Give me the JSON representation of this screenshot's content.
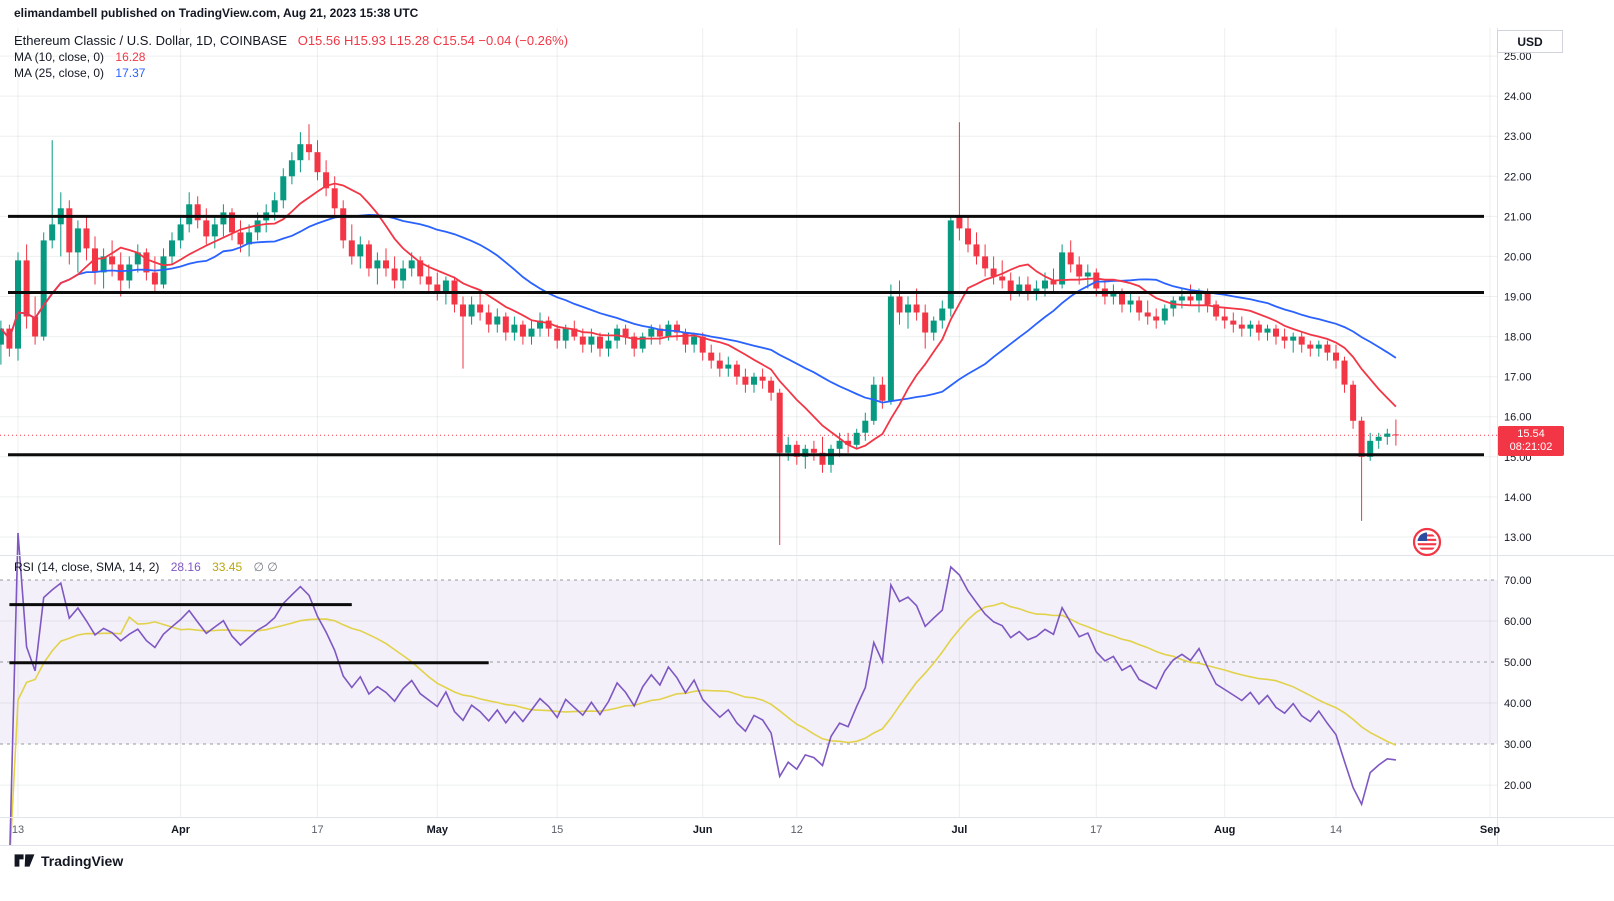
{
  "publish": {
    "text": "elimandambell published on TradingView.com, Aug 21, 2023 15:38 UTC"
  },
  "symbol_header": {
    "title": "Ethereum Classic / U.S. Dollar, 1D, COINBASE",
    "ohlc_text": "O15.56 H15.93 L15.28 C15.54 −0.04 (−0.26%)",
    "ma10": {
      "label": "MA (10, close, 0)",
      "value": "16.28"
    },
    "ma25": {
      "label": "MA (25, close, 0)",
      "value": "17.37"
    }
  },
  "rsi_header": {
    "label": "RSI (14, close, SMA, 14, 2)",
    "rsi_value": "28.16",
    "sma_value": "33.45",
    "extra": "∅ ∅"
  },
  "axes": {
    "currency_label": "USD",
    "price_tag": {
      "price": "15.54",
      "countdown": "08:21:02"
    }
  },
  "footer": {
    "brand": "TradingView"
  },
  "colors": {
    "up": "#089981",
    "down": "#F23645",
    "ma10": "#F23645",
    "ma25": "#2962FF",
    "rsi": "#7E57C2",
    "rsi_ma": "#E2D24B",
    "band_fill": "rgba(126,87,194,0.09)",
    "band_line": "#9598A1",
    "level": "#0B0B0B",
    "grid": "rgba(42,46,57,0.08)",
    "sep": "#E0E3EB",
    "axis_text": "#131722",
    "time_text": "#5A5F6A"
  },
  "chart_data": {
    "type": "candlestick",
    "title": "Ethereum Classic / U.S. Dollar, 1D, COINBASE",
    "exchange": "COINBASE",
    "interval": "1D",
    "start_date": "2023-03-11",
    "end_date": "2023-08-21",
    "price_ylim": [
      12.6,
      25.7
    ],
    "price_ticks": [
      25,
      24,
      23,
      22,
      21,
      20,
      19,
      18,
      17,
      16,
      15,
      14,
      13
    ],
    "rsi_ticks": [
      70,
      60,
      50,
      40,
      30,
      20
    ],
    "time_ticks": [
      {
        "i": 2,
        "label": "13",
        "major": false
      },
      {
        "i": 21,
        "label": "Apr",
        "major": true
      },
      {
        "i": 37,
        "label": "17",
        "major": false
      },
      {
        "i": 51,
        "label": "May",
        "major": true
      },
      {
        "i": 65,
        "label": "15",
        "major": false
      },
      {
        "i": 82,
        "label": "Jun",
        "major": true
      },
      {
        "i": 93,
        "label": "12",
        "major": false
      },
      {
        "i": 112,
        "label": "Jul",
        "major": true
      },
      {
        "i": 128,
        "label": "17",
        "major": false
      },
      {
        "i": 143,
        "label": "Aug",
        "major": true
      },
      {
        "i": 156,
        "label": "14",
        "major": false
      },
      {
        "i": 174,
        "label": "Sep",
        "major": true
      }
    ],
    "levels": [
      21.0,
      19.1,
      15.05
    ],
    "price_line": 15.54,
    "indicators": {
      "ma10": {
        "period": 10,
        "value": 16.28
      },
      "ma25": {
        "period": 25,
        "value": 17.37
      }
    },
    "rsi": {
      "period": 14,
      "smoothing": 14,
      "value": 28.16,
      "sma_value": 33.45,
      "ylim": [
        12.7,
        75.6
      ],
      "band": [
        30,
        70
      ],
      "mid": 50,
      "trendlines": [
        {
          "i1": 1,
          "i2": 41,
          "v": 64
        },
        {
          "i1": 1,
          "i2": 57,
          "v": 49.8
        }
      ]
    },
    "ohlc": [
      [
        17.8,
        18.4,
        17.3,
        18.2
      ],
      [
        18.2,
        18.3,
        17.5,
        17.7
      ],
      [
        17.7,
        20.1,
        17.4,
        19.9
      ],
      [
        19.9,
        20.3,
        18.2,
        18.5
      ],
      [
        18.5,
        19.0,
        17.8,
        18.0
      ],
      [
        18.0,
        20.6,
        17.9,
        20.4
      ],
      [
        20.4,
        22.9,
        20.2,
        20.8
      ],
      [
        20.8,
        21.6,
        20.0,
        21.2
      ],
      [
        21.2,
        21.4,
        19.8,
        20.1
      ],
      [
        20.1,
        20.9,
        19.6,
        20.7
      ],
      [
        20.7,
        21.0,
        19.9,
        20.2
      ],
      [
        20.2,
        20.5,
        19.3,
        19.6
      ],
      [
        19.6,
        20.2,
        19.2,
        20.0
      ],
      [
        20.0,
        20.4,
        19.5,
        19.8
      ],
      [
        19.8,
        20.1,
        19.0,
        19.4
      ],
      [
        19.4,
        20.0,
        19.2,
        19.8
      ],
      [
        19.8,
        20.3,
        19.6,
        20.1
      ],
      [
        20.1,
        20.2,
        19.4,
        19.6
      ],
      [
        19.6,
        20.0,
        19.1,
        19.3
      ],
      [
        19.3,
        20.2,
        19.2,
        20.0
      ],
      [
        20.0,
        20.6,
        19.8,
        20.4
      ],
      [
        20.4,
        21.0,
        20.2,
        20.8
      ],
      [
        20.8,
        21.6,
        20.6,
        21.3
      ],
      [
        21.3,
        21.5,
        20.7,
        20.9
      ],
      [
        20.9,
        21.2,
        20.3,
        20.5
      ],
      [
        20.5,
        21.0,
        20.2,
        20.8
      ],
      [
        20.8,
        21.3,
        20.5,
        21.1
      ],
      [
        21.1,
        21.2,
        20.4,
        20.6
      ],
      [
        20.6,
        20.9,
        20.1,
        20.3
      ],
      [
        20.3,
        20.8,
        20.0,
        20.6
      ],
      [
        20.6,
        21.1,
        20.4,
        20.9
      ],
      [
        20.9,
        21.3,
        20.6,
        21.1
      ],
      [
        21.1,
        21.6,
        20.9,
        21.4
      ],
      [
        21.4,
        22.2,
        21.2,
        22.0
      ],
      [
        22.0,
        22.6,
        21.8,
        22.4
      ],
      [
        22.4,
        23.1,
        22.1,
        22.8
      ],
      [
        22.8,
        23.3,
        22.4,
        22.6
      ],
      [
        22.6,
        22.9,
        21.9,
        22.1
      ],
      [
        22.1,
        22.4,
        21.5,
        21.7
      ],
      [
        21.7,
        22.0,
        21.0,
        21.2
      ],
      [
        21.2,
        21.4,
        20.2,
        20.4
      ],
      [
        20.4,
        20.8,
        19.8,
        20.0
      ],
      [
        20.0,
        20.5,
        19.7,
        20.3
      ],
      [
        20.3,
        20.4,
        19.5,
        19.7
      ],
      [
        19.7,
        20.1,
        19.3,
        19.9
      ],
      [
        19.9,
        20.2,
        19.5,
        19.7
      ],
      [
        19.7,
        20.0,
        19.2,
        19.4
      ],
      [
        19.4,
        19.9,
        19.2,
        19.7
      ],
      [
        19.7,
        20.1,
        19.5,
        19.9
      ],
      [
        19.9,
        20.0,
        19.3,
        19.5
      ],
      [
        19.5,
        19.8,
        19.1,
        19.3
      ],
      [
        19.3,
        19.6,
        18.9,
        19.1
      ],
      [
        19.1,
        19.5,
        18.8,
        19.4
      ],
      [
        19.4,
        19.5,
        18.6,
        18.8
      ],
      [
        18.8,
        19.0,
        17.2,
        18.5
      ],
      [
        18.5,
        19.0,
        18.3,
        18.8
      ],
      [
        18.8,
        19.1,
        18.4,
        18.6
      ],
      [
        18.6,
        18.8,
        18.1,
        18.3
      ],
      [
        18.3,
        18.7,
        18.1,
        18.5
      ],
      [
        18.5,
        18.6,
        17.9,
        18.1
      ],
      [
        18.1,
        18.5,
        17.9,
        18.3
      ],
      [
        18.3,
        18.4,
        17.8,
        18.0
      ],
      [
        18.0,
        18.4,
        17.8,
        18.2
      ],
      [
        18.2,
        18.6,
        18.0,
        18.4
      ],
      [
        18.4,
        18.5,
        18.0,
        18.2
      ],
      [
        18.2,
        18.3,
        17.7,
        17.9
      ],
      [
        17.9,
        18.3,
        17.7,
        18.2
      ],
      [
        18.2,
        18.4,
        17.9,
        18.0
      ],
      [
        18.0,
        18.2,
        17.6,
        17.8
      ],
      [
        17.8,
        18.2,
        17.6,
        18.0
      ],
      [
        18.0,
        18.1,
        17.5,
        17.7
      ],
      [
        17.7,
        18.1,
        17.5,
        17.9
      ],
      [
        17.9,
        18.3,
        17.7,
        18.2
      ],
      [
        18.2,
        18.3,
        17.8,
        18.0
      ],
      [
        18.0,
        18.1,
        17.5,
        17.7
      ],
      [
        17.7,
        18.1,
        17.6,
        18.0
      ],
      [
        18.0,
        18.3,
        17.8,
        18.2
      ],
      [
        18.2,
        18.3,
        17.8,
        18.0
      ],
      [
        18.0,
        18.4,
        17.9,
        18.3
      ],
      [
        18.3,
        18.4,
        17.9,
        18.1
      ],
      [
        18.1,
        18.2,
        17.6,
        17.8
      ],
      [
        17.8,
        18.1,
        17.6,
        18.0
      ],
      [
        18.0,
        18.1,
        17.4,
        17.6
      ],
      [
        17.6,
        17.8,
        17.2,
        17.4
      ],
      [
        17.4,
        17.6,
        17.0,
        17.2
      ],
      [
        17.2,
        17.5,
        17.0,
        17.3
      ],
      [
        17.3,
        17.4,
        16.8,
        17.0
      ],
      [
        17.0,
        17.2,
        16.6,
        16.8
      ],
      [
        16.8,
        17.1,
        16.6,
        17.0
      ],
      [
        17.0,
        17.2,
        16.7,
        16.9
      ],
      [
        16.9,
        17.0,
        16.4,
        16.6
      ],
      [
        16.6,
        16.7,
        12.8,
        15.1
      ],
      [
        15.1,
        15.5,
        14.9,
        15.3
      ],
      [
        15.3,
        15.4,
        14.8,
        15.0
      ],
      [
        15.0,
        15.3,
        14.7,
        15.2
      ],
      [
        15.2,
        15.4,
        14.9,
        15.1
      ],
      [
        15.1,
        15.5,
        14.6,
        14.8
      ],
      [
        14.8,
        15.3,
        14.6,
        15.2
      ],
      [
        15.2,
        15.6,
        15.0,
        15.4
      ],
      [
        15.4,
        15.6,
        15.1,
        15.3
      ],
      [
        15.3,
        15.7,
        15.2,
        15.6
      ],
      [
        15.6,
        16.1,
        15.4,
        15.9
      ],
      [
        15.9,
        17.0,
        15.8,
        16.8
      ],
      [
        16.8,
        17.0,
        16.2,
        16.4
      ],
      [
        16.4,
        19.3,
        16.3,
        19.0
      ],
      [
        19.0,
        19.4,
        18.3,
        18.6
      ],
      [
        18.6,
        19.0,
        18.2,
        18.8
      ],
      [
        18.8,
        19.2,
        18.4,
        18.6
      ],
      [
        18.6,
        18.8,
        17.7,
        18.1
      ],
      [
        18.1,
        18.5,
        17.9,
        18.4
      ],
      [
        18.4,
        18.9,
        18.2,
        18.7
      ],
      [
        18.7,
        21.0,
        18.5,
        20.9
      ],
      [
        21.0,
        23.35,
        20.4,
        20.7
      ],
      [
        20.7,
        21.0,
        20.1,
        20.3
      ],
      [
        20.3,
        20.6,
        19.8,
        20.0
      ],
      [
        20.0,
        20.3,
        19.5,
        19.7
      ],
      [
        19.7,
        20.0,
        19.3,
        19.5
      ],
      [
        19.5,
        19.9,
        19.2,
        19.4
      ],
      [
        19.4,
        19.6,
        18.9,
        19.1
      ],
      [
        19.1,
        19.5,
        19.0,
        19.3
      ],
      [
        19.3,
        19.5,
        18.9,
        19.1
      ],
      [
        19.1,
        19.4,
        18.9,
        19.2
      ],
      [
        19.2,
        19.6,
        19.0,
        19.4
      ],
      [
        19.4,
        19.7,
        19.1,
        19.3
      ],
      [
        19.3,
        20.3,
        19.2,
        20.1
      ],
      [
        20.1,
        20.4,
        19.6,
        19.8
      ],
      [
        19.8,
        20.0,
        19.3,
        19.5
      ],
      [
        19.5,
        19.8,
        19.2,
        19.6
      ],
      [
        19.6,
        19.7,
        19.0,
        19.2
      ],
      [
        19.2,
        19.4,
        18.8,
        19.0
      ],
      [
        19.0,
        19.3,
        18.8,
        19.1
      ],
      [
        19.1,
        19.2,
        18.6,
        18.8
      ],
      [
        18.8,
        19.1,
        18.6,
        18.9
      ],
      [
        18.9,
        19.0,
        18.4,
        18.6
      ],
      [
        18.6,
        18.9,
        18.3,
        18.5
      ],
      [
        18.5,
        18.7,
        18.2,
        18.4
      ],
      [
        18.4,
        18.8,
        18.3,
        18.7
      ],
      [
        18.7,
        19.0,
        18.5,
        18.9
      ],
      [
        18.9,
        19.2,
        18.7,
        19.0
      ],
      [
        19.0,
        19.3,
        18.8,
        18.9
      ],
      [
        18.9,
        19.2,
        18.6,
        19.1
      ],
      [
        19.1,
        19.2,
        18.6,
        18.8
      ],
      [
        18.8,
        18.9,
        18.4,
        18.5
      ],
      [
        18.5,
        18.7,
        18.2,
        18.4
      ],
      [
        18.4,
        18.6,
        18.1,
        18.3
      ],
      [
        18.3,
        18.5,
        18.0,
        18.2
      ],
      [
        18.2,
        18.4,
        18.0,
        18.3
      ],
      [
        18.3,
        18.4,
        17.9,
        18.1
      ],
      [
        18.1,
        18.3,
        17.9,
        18.2
      ],
      [
        18.2,
        18.3,
        17.8,
        18.0
      ],
      [
        18.0,
        18.2,
        17.7,
        17.9
      ],
      [
        17.9,
        18.1,
        17.6,
        18.0
      ],
      [
        18.0,
        18.1,
        17.6,
        17.8
      ],
      [
        17.8,
        17.9,
        17.5,
        17.7
      ],
      [
        17.7,
        17.9,
        17.5,
        17.8
      ],
      [
        17.8,
        17.9,
        17.4,
        17.6
      ],
      [
        17.6,
        17.8,
        17.2,
        17.4
      ],
      [
        17.4,
        17.5,
        16.6,
        16.8
      ],
      [
        16.8,
        16.9,
        15.7,
        15.9
      ],
      [
        15.9,
        16.0,
        13.4,
        15.0
      ],
      [
        15.0,
        15.6,
        14.9,
        15.4
      ],
      [
        15.4,
        15.6,
        15.2,
        15.5
      ],
      [
        15.5,
        15.7,
        15.3,
        15.58
      ],
      [
        15.56,
        15.93,
        15.28,
        15.54
      ]
    ]
  }
}
